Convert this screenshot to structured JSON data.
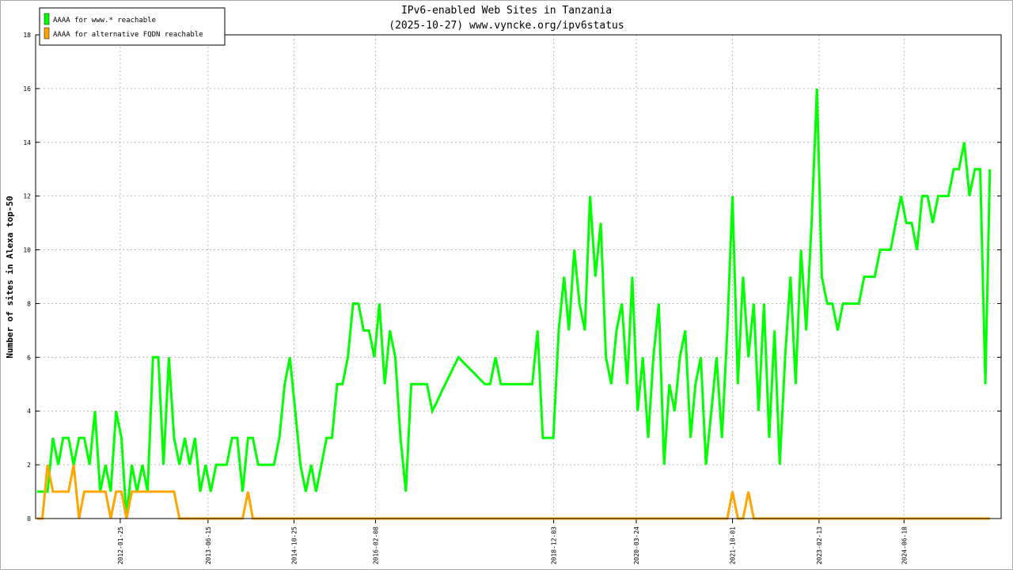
{
  "chart_data": {
    "type": "line",
    "title": "IPv6-enabled Web Sites in Tanzania",
    "subtitle": "(2025-10-27) www.vyncke.org/ipv6status",
    "y_label": "Number of sites in Alexa top-50",
    "xlim": [
      "2010-09-23",
      "2025-12-31"
    ],
    "xticks": [
      "2012-01-25",
      "2013-06-15",
      "2014-10-25",
      "2016-02-08",
      "2018-12-03",
      "2020-03-24",
      "2021-10-01",
      "2023-02-13",
      "2024-06-18"
    ],
    "ylim": [
      0,
      18
    ],
    "yticks": [
      0,
      2,
      4,
      6,
      8,
      10,
      12,
      14,
      16,
      18
    ],
    "grid": true,
    "legend": "top-left",
    "x": [
      "2010-10-01",
      "2010-11-01",
      "2010-12-01",
      "2011-01-01",
      "2011-02-01",
      "2011-03-01",
      "2011-04-01",
      "2011-05-01",
      "2011-06-01",
      "2011-07-01",
      "2011-08-01",
      "2011-09-01",
      "2011-10-01",
      "2011-11-01",
      "2011-12-01",
      "2012-01-01",
      "2012-02-01",
      "2012-03-01",
      "2012-04-01",
      "2012-05-01",
      "2012-06-01",
      "2012-07-01",
      "2012-08-01",
      "2012-09-01",
      "2012-10-01",
      "2012-11-01",
      "2012-12-01",
      "2013-01-01",
      "2013-02-01",
      "2013-03-01",
      "2013-04-01",
      "2013-05-01",
      "2013-06-01",
      "2013-07-01",
      "2013-08-01",
      "2013-09-01",
      "2013-10-01",
      "2013-11-01",
      "2013-12-01",
      "2014-01-01",
      "2014-02-01",
      "2014-03-01",
      "2014-04-01",
      "2014-05-01",
      "2014-06-01",
      "2014-07-01",
      "2014-08-01",
      "2014-09-01",
      "2014-10-01",
      "2014-11-01",
      "2014-12-01",
      "2015-01-01",
      "2015-02-01",
      "2015-03-01",
      "2015-04-01",
      "2015-05-01",
      "2015-06-01",
      "2015-07-01",
      "2015-08-01",
      "2015-09-01",
      "2015-10-01",
      "2015-11-01",
      "2015-12-01",
      "2016-01-01",
      "2016-02-01",
      "2016-03-01",
      "2016-04-01",
      "2016-05-01",
      "2016-06-01",
      "2016-07-01",
      "2016-08-01",
      "2016-09-01",
      "2016-10-01",
      "2016-11-01",
      "2016-12-01",
      "2017-01-01",
      "2017-02-01",
      "2017-03-01",
      "2017-04-01",
      "2017-05-01",
      "2017-06-01",
      "2017-07-01",
      "2017-08-01",
      "2017-09-01",
      "2017-10-01",
      "2017-11-01",
      "2017-12-01",
      "2018-01-01",
      "2018-02-01",
      "2018-03-01",
      "2018-04-01",
      "2018-05-01",
      "2018-06-01",
      "2018-07-01",
      "2018-08-01",
      "2018-09-01",
      "2018-10-01",
      "2018-11-01",
      "2018-12-01",
      "2019-01-01",
      "2019-02-01",
      "2019-03-01",
      "2019-04-01",
      "2019-05-01",
      "2019-06-01",
      "2019-07-01",
      "2019-08-01",
      "2019-09-01",
      "2019-10-01",
      "2019-11-01",
      "2019-12-01",
      "2020-01-01",
      "2020-02-01",
      "2020-03-01",
      "2020-04-01",
      "2020-05-01",
      "2020-06-01",
      "2020-07-01",
      "2020-08-01",
      "2020-09-01",
      "2020-10-01",
      "2020-11-01",
      "2020-12-01",
      "2021-01-01",
      "2021-02-01",
      "2021-03-01",
      "2021-04-01",
      "2021-05-01",
      "2021-06-01",
      "2021-07-01",
      "2021-08-01",
      "2021-09-01",
      "2021-10-01",
      "2021-11-01",
      "2021-12-01",
      "2022-01-01",
      "2022-02-01",
      "2022-03-01",
      "2022-04-01",
      "2022-05-01",
      "2022-06-01",
      "2022-07-01",
      "2022-08-01",
      "2022-09-01",
      "2022-10-01",
      "2022-11-01",
      "2022-12-01",
      "2023-01-01",
      "2023-02-01",
      "2023-03-01",
      "2023-04-01",
      "2023-05-01",
      "2023-06-01",
      "2023-07-01",
      "2023-08-01",
      "2023-09-01",
      "2023-10-01",
      "2023-11-01",
      "2023-12-01",
      "2024-01-01",
      "2024-02-01",
      "2024-03-01",
      "2024-04-01",
      "2024-05-01",
      "2024-06-01",
      "2024-07-01",
      "2024-08-01",
      "2024-09-01",
      "2024-10-01",
      "2024-11-01",
      "2024-12-01",
      "2025-01-01",
      "2025-02-01",
      "2025-03-01",
      "2025-04-01",
      "2025-05-01",
      "2025-06-01",
      "2025-07-01",
      "2025-08-01",
      "2025-09-01",
      "2025-10-01",
      "2025-10-27"
    ],
    "series": [
      {
        "name": "AAAA for www.* reachable",
        "color": "#00ff00",
        "values": [
          1,
          1,
          1,
          3,
          2,
          3,
          3,
          2,
          3,
          3,
          2,
          4,
          1,
          2,
          1,
          4,
          3,
          0,
          2,
          1,
          2,
          1,
          6,
          6,
          2,
          6,
          3,
          2,
          3,
          2,
          3,
          1,
          2,
          1,
          2,
          2,
          2,
          3,
          3,
          1,
          3,
          3,
          2,
          2,
          2,
          2,
          3,
          5,
          6,
          4,
          2,
          1,
          2,
          1,
          2,
          3,
          3,
          5,
          5,
          6,
          8,
          8,
          7,
          7,
          6,
          8,
          5,
          7,
          6,
          3,
          1,
          5,
          5,
          5,
          5,
          4,
          4.4,
          4.8,
          5.2,
          5.6,
          6,
          5.8,
          5.6,
          5.4,
          5.2,
          5,
          5,
          6,
          5,
          5,
          5,
          5,
          5,
          5,
          5,
          7,
          3,
          3,
          3,
          7,
          9,
          7,
          10,
          8,
          7,
          12,
          9,
          11,
          6,
          5,
          7,
          8,
          5,
          9,
          4,
          6,
          3,
          6,
          8,
          2,
          5,
          4,
          6,
          7,
          3,
          5,
          6,
          2,
          4,
          6,
          3,
          7,
          12,
          5,
          9,
          6,
          8,
          4,
          8,
          3,
          7,
          2,
          6,
          9,
          5,
          10,
          7,
          11,
          16,
          9,
          8,
          8,
          7,
          8,
          8,
          8,
          8,
          9,
          9,
          9,
          10,
          10,
          10,
          11,
          12,
          11,
          11,
          10,
          12,
          12,
          11,
          12,
          12,
          12,
          13,
          13,
          14,
          12,
          13,
          13,
          5,
          13
        ]
      },
      {
        "name": "AAAA for alternative FQDN reachable",
        "color": "#ffa500",
        "values": [
          0,
          0,
          2,
          1,
          1,
          1,
          1,
          2,
          0,
          1,
          1,
          1,
          1,
          1,
          0,
          1,
          1,
          0,
          1,
          1,
          1,
          1,
          1,
          1,
          1,
          1,
          1,
          0,
          0,
          0,
          0,
          0,
          0,
          0,
          0,
          0,
          0,
          0,
          0,
          0,
          1,
          0,
          0,
          0,
          0,
          0,
          0,
          0,
          0,
          0,
          0,
          0,
          0,
          0,
          0,
          0,
          0,
          0,
          0,
          0,
          0,
          0,
          0,
          0,
          0,
          0,
          0,
          0,
          0,
          0,
          0,
          0,
          0,
          0,
          0,
          0,
          0,
          0,
          0,
          0,
          0,
          0,
          0,
          0,
          0,
          0,
          0,
          0,
          0,
          0,
          0,
          0,
          0,
          0,
          0,
          0,
          0,
          0,
          0,
          0,
          0,
          0,
          0,
          0,
          0,
          0,
          0,
          0,
          0,
          0,
          0,
          0,
          0,
          0,
          0,
          0,
          0,
          0,
          0,
          0,
          0,
          0,
          0,
          0,
          0,
          0,
          0,
          0,
          0,
          0,
          0,
          0,
          1,
          0,
          0,
          1,
          0,
          0,
          0,
          0,
          0,
          0,
          0,
          0,
          0,
          0,
          0,
          0,
          0,
          0,
          0,
          0,
          0,
          0,
          0,
          0,
          0,
          0,
          0,
          0,
          0,
          0,
          0,
          0,
          0,
          0,
          0,
          0,
          0,
          0,
          0,
          0,
          0,
          0,
          0,
          0,
          0,
          0,
          0,
          0,
          0,
          0
        ]
      }
    ]
  }
}
